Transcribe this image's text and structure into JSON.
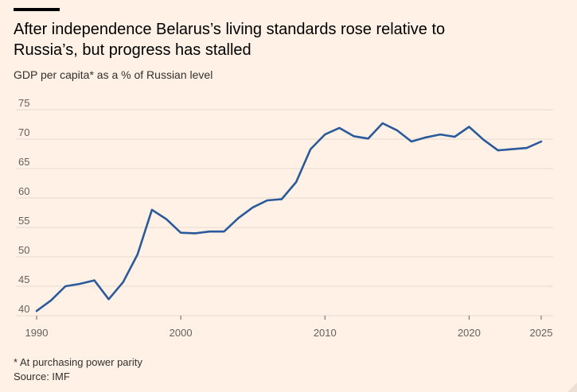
{
  "header": {
    "title": "After independence Belarus’s living standards rose relative to Russia’s, but progress has stalled",
    "subtitle": "GDP per capita* as a % of Russian level"
  },
  "footer": {
    "footnote": "* At purchasing power parity",
    "source": "Source: IMF"
  },
  "colors": {
    "background": "#fff1e5",
    "line": "#2a5a9b",
    "gridline": "#e6d9ce",
    "text": "#33302e"
  },
  "chart_data": {
    "type": "line",
    "title": "After independence Belarus’s living standards rose relative to Russia’s, but progress has stalled",
    "subtitle": "GDP per capita* as a % of Russian level",
    "xlabel": "",
    "ylabel": "",
    "xlim": [
      1990,
      2025
    ],
    "ylim": [
      40,
      75
    ],
    "grid": true,
    "yticks": [
      40,
      45,
      50,
      55,
      60,
      65,
      70,
      75
    ],
    "xticks": [
      1990,
      2000,
      2010,
      2020,
      2025
    ],
    "series": [
      {
        "name": "Belarus GDP per capita as % of Russia",
        "x": [
          1990,
          1991,
          1992,
          1993,
          1994,
          1995,
          1996,
          1997,
          1998,
          1999,
          2000,
          2001,
          2002,
          2003,
          2004,
          2005,
          2006,
          2007,
          2008,
          2009,
          2010,
          2011,
          2012,
          2013,
          2014,
          2015,
          2016,
          2017,
          2018,
          2019,
          2020,
          2021,
          2022,
          2023,
          2024,
          2025
        ],
        "values": [
          40.8,
          42.6,
          45.0,
          45.4,
          46.0,
          42.8,
          45.7,
          50.4,
          58.0,
          56.4,
          54.1,
          54.0,
          54.3,
          54.3,
          56.6,
          58.4,
          59.6,
          59.8,
          62.7,
          68.3,
          70.8,
          71.9,
          70.5,
          70.1,
          72.7,
          71.5,
          69.6,
          70.3,
          70.8,
          70.4,
          72.1,
          69.9,
          68.1,
          68.3,
          68.5,
          69.6
        ]
      }
    ]
  }
}
